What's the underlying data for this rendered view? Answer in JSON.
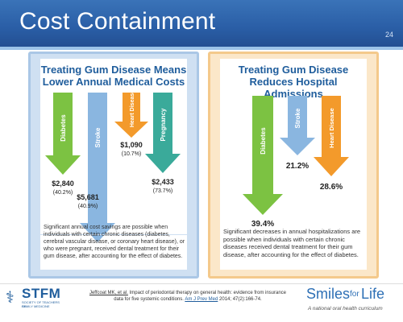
{
  "slide": {
    "title": "Cost Containment",
    "page_number": "24"
  },
  "left_panel": {
    "title_line1": "Treating Gum Disease Means",
    "title_line2": "Lower Annual Medical Costs",
    "description": "Significant annual cost savings are possible when individuals with certain chronic diseases (diabetes, cerebral vascular disease, or coronary heart disease), or who were pregnant, received dental treatment for their gum disease, after accounting for the effect of diabetes.",
    "arrows": [
      {
        "label": "Diabetes",
        "value": "$2,840",
        "percent": "(40.2%)",
        "color": "#7cc242"
      },
      {
        "label": "Stroke",
        "value": "$5,681",
        "percent": "(40.9%)",
        "color": "#8ab6e0"
      },
      {
        "label": "Heart Disease",
        "value": "$1,090",
        "percent": "(10.7%)",
        "color": "#f39a2b"
      },
      {
        "label": "Pregnancy",
        "value": "$2,433",
        "percent": "(73.7%)",
        "color": "#3aaa9a"
      }
    ]
  },
  "right_panel": {
    "title_line1": "Treating Gum Disease",
    "title_line2": "Reduces Hospital Admissions",
    "description": "Significant decreases in annual hospitalizations are possible when individuals with certain chronic diseases received dental treatment for their gum disease, after accounting for the effect of diabetes.",
    "arrows": [
      {
        "label": "Diabetes",
        "value": "39.4%",
        "color": "#7cc242"
      },
      {
        "label": "Stroke",
        "value": "21.2%",
        "color": "#8ab6e0"
      },
      {
        "label": "Heart Disease",
        "value": "28.6%",
        "color": "#f39a2b"
      }
    ]
  },
  "footer": {
    "citation_author": "Jeffcoat MK, et al.",
    "citation_title": "Impact of periodontal therapy on general health: evidence from insurance",
    "citation_line2": "data for five systemic conditions.",
    "citation_journal": "Am J Prev Med",
    "citation_ref": "2014; 47(2):166-74.",
    "logo_left": "STFM",
    "logo_left_sub1": "SOCIETY OF TEACHERS OF",
    "logo_left_sub2": "FAMILY MEDICINE",
    "brand_part1": "Smiles",
    "brand_part2": "for",
    "brand_part3": "Life",
    "brand_tagline": "A national oral health curriculum"
  }
}
